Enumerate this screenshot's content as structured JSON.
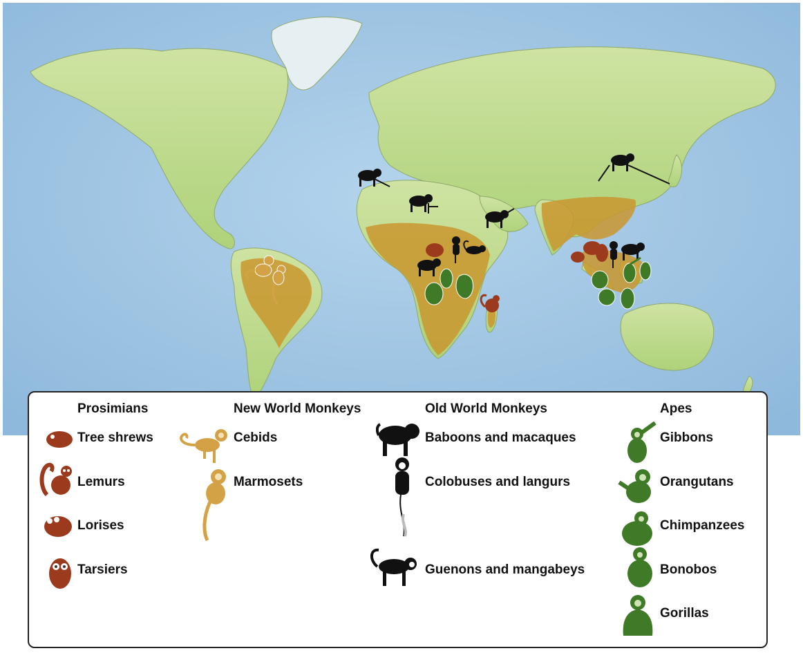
{
  "colors": {
    "ocean": "#a9cbe6",
    "land_green": "#bfd98a",
    "range_ochre": "#c9962e",
    "prosimian": "#9b3a1c",
    "new_world": "#d4a246",
    "old_world": "#111111",
    "ape": "#3f7a27"
  },
  "legend": {
    "prosimians": {
      "heading": "Prosimians",
      "items": [
        {
          "label": "Tree shrews",
          "icon": "tree-shrew-icon"
        },
        {
          "label": "Lemurs",
          "icon": "lemur-icon"
        },
        {
          "label": "Lorises",
          "icon": "loris-icon"
        },
        {
          "label": "Tarsiers",
          "icon": "tarsier-icon"
        }
      ]
    },
    "new_world": {
      "heading": "New World Monkeys",
      "items": [
        {
          "label": "Cebids",
          "icon": "cebid-icon"
        },
        {
          "label": "Marmosets",
          "icon": "marmoset-icon"
        }
      ]
    },
    "old_world": {
      "heading": "Old World Monkeys",
      "items": [
        {
          "label": "Baboons and macaques",
          "icon": "baboon-icon"
        },
        {
          "label": "Colobuses and langurs",
          "icon": "colobus-icon"
        },
        {
          "label": "Guenons and mangabeys",
          "icon": "guenon-icon"
        }
      ]
    },
    "apes": {
      "heading": "Apes",
      "items": [
        {
          "label": "Gibbons",
          "icon": "gibbon-icon"
        },
        {
          "label": "Orangutans",
          "icon": "orangutan-icon"
        },
        {
          "label": "Chimpanzees",
          "icon": "chimpanzee-icon"
        },
        {
          "label": "Bonobos",
          "icon": "bonobo-icon"
        },
        {
          "label": "Gorillas",
          "icon": "gorilla-icon"
        }
      ]
    }
  }
}
